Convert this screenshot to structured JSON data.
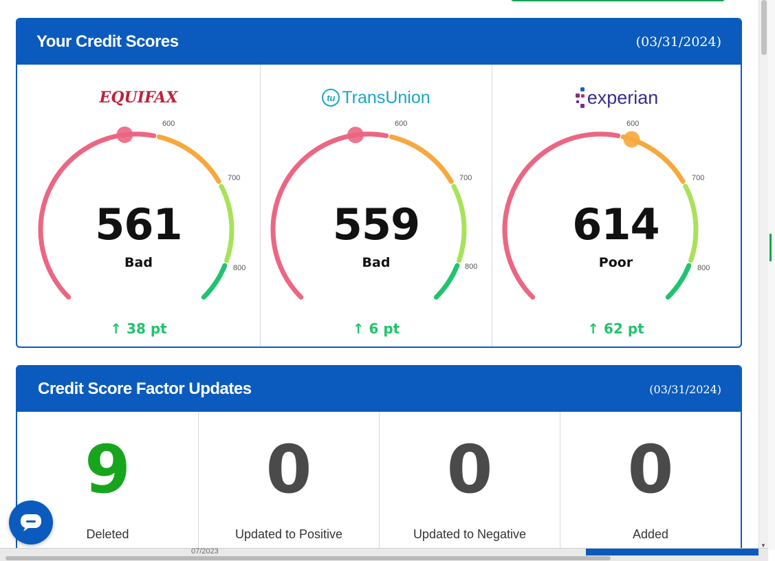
{
  "colors": {
    "brand": "#0a5bbd",
    "bad": "#ec6683",
    "fair": "#f7a83d",
    "good": "#a8e25a",
    "excellent": "#1fc46e",
    "up": "#20c36a",
    "deleted": "#18a51e"
  },
  "scores_card": {
    "title": "Your Credit Scores",
    "date": "(03/31/2024)",
    "bureaus": [
      {
        "name": "EQUIFAX",
        "score": 561,
        "score_text": "561",
        "rating": "Bad",
        "change": "38 pt",
        "marker_color": "#ec6683"
      },
      {
        "name": "TransUnion",
        "badge": "tu",
        "score": 559,
        "score_text": "559",
        "rating": "Bad",
        "change": "6 pt",
        "marker_color": "#ec6683"
      },
      {
        "name": "experian",
        "score": 614,
        "score_text": "614",
        "rating": "Poor",
        "change": "62 pt",
        "marker_color": "#f7a83d"
      }
    ],
    "ticks": [
      "600",
      "700",
      "800"
    ],
    "gauge_min": 300,
    "gauge_max": 850,
    "up_arrow_icon": "arrow-up-icon"
  },
  "factors_card": {
    "title": "Credit Score Factor Updates",
    "date": "(03/31/2024)",
    "items": [
      {
        "count": "9",
        "label": "Deleted"
      },
      {
        "count": "0",
        "label": "Updated to Positive"
      },
      {
        "count": "0",
        "label": "Updated to Negative"
      },
      {
        "count": "0",
        "label": "Added"
      }
    ]
  },
  "chat": {
    "icon": "chat-bubble-icon"
  },
  "bottom": {
    "partial_text": "07/2023"
  }
}
